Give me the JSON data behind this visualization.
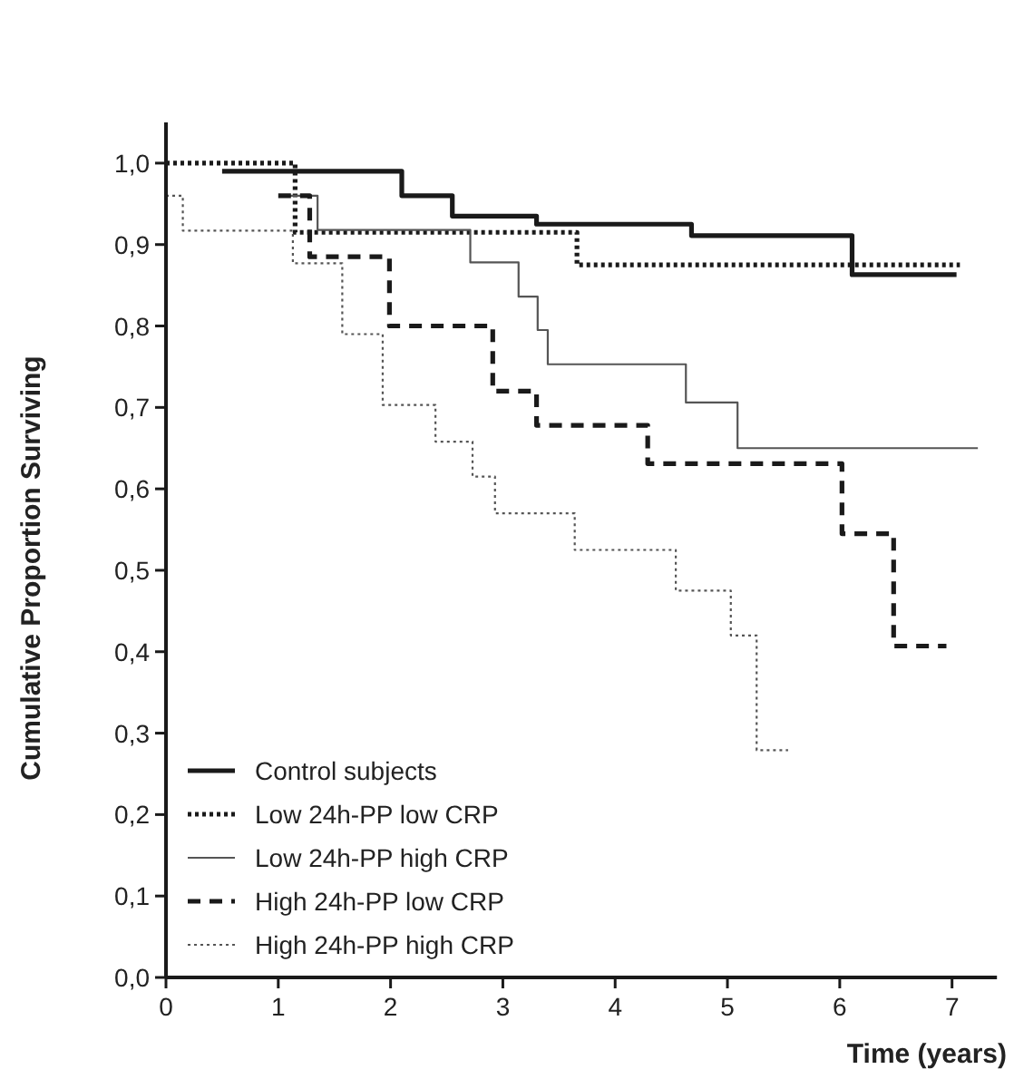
{
  "chart_data": {
    "type": "step",
    "xlabel": "Time (years)",
    "ylabel": "Cumulative Proportion Surviving",
    "xlim": [
      0,
      7.4
    ],
    "ylim": [
      0,
      1.05
    ],
    "xticks": [
      0,
      1,
      2,
      3,
      4,
      5,
      6,
      7
    ],
    "yticks": [
      {
        "value": 0,
        "label": "0,0"
      },
      {
        "value": 0.1,
        "label": "0,1"
      },
      {
        "value": 0.2,
        "label": "0,2"
      },
      {
        "value": 0.3,
        "label": "0,3"
      },
      {
        "value": 0.4,
        "label": "0,4"
      },
      {
        "value": 0.5,
        "label": "0,5"
      },
      {
        "value": 0.6,
        "label": "0,6"
      },
      {
        "value": 0.7,
        "label": "0,7"
      },
      {
        "value": 0.8,
        "label": "0,8"
      },
      {
        "value": 0.9,
        "label": "0,9"
      },
      {
        "value": 1,
        "label": "1,0"
      }
    ],
    "grid": false,
    "legend": "bottom left",
    "series": [
      {
        "name": "Control subjects",
        "color": "#1a1a1a",
        "line_style": "solid",
        "x": [
          0.5,
          2.1,
          2.55,
          3.3,
          4.68,
          6.11,
          7.04
        ],
        "values": [
          0.99,
          0.96,
          0.935,
          0.925,
          0.911,
          0.863,
          0.863
        ]
      },
      {
        "name": "Low 24h-PP low CRP",
        "color": "#1a1a1a",
        "line_style": "dotted",
        "x": [
          0,
          1.15,
          3.66,
          7.07
        ],
        "values": [
          1,
          0.915,
          0.875,
          0.875
        ]
      },
      {
        "name": "Low 24h-PP high CRP",
        "color": "#555555",
        "line_style": "solid",
        "x": [
          1.05,
          1.35,
          2.71,
          3.14,
          3.31,
          3.4,
          4.63,
          5.09,
          7.23
        ],
        "values": [
          0.96,
          0.918,
          0.878,
          0.836,
          0.795,
          0.753,
          0.706,
          0.65,
          0.65
        ]
      },
      {
        "name": "High 24h-PP low CRP",
        "color": "#1a1a1a",
        "line_style": "dashed",
        "x": [
          1.0,
          1.28,
          1.99,
          2.91,
          3.3,
          4.29,
          6.02,
          6.48,
          6.95
        ],
        "values": [
          0.96,
          0.885,
          0.8,
          0.72,
          0.678,
          0.631,
          0.545,
          0.407,
          0.407
        ]
      },
      {
        "name": "High 24h-PP high CRP",
        "color": "#555555",
        "line_style": "dotted",
        "x": [
          0,
          0.15,
          1.13,
          1.57,
          1.93,
          2.4,
          2.73,
          2.93,
          3.64,
          4.54,
          5.03,
          5.26,
          5.54
        ],
        "values": [
          0.96,
          0.917,
          0.877,
          0.79,
          0.703,
          0.658,
          0.615,
          0.57,
          0.525,
          0.475,
          0.42,
          0.279,
          0.279
        ]
      }
    ]
  }
}
